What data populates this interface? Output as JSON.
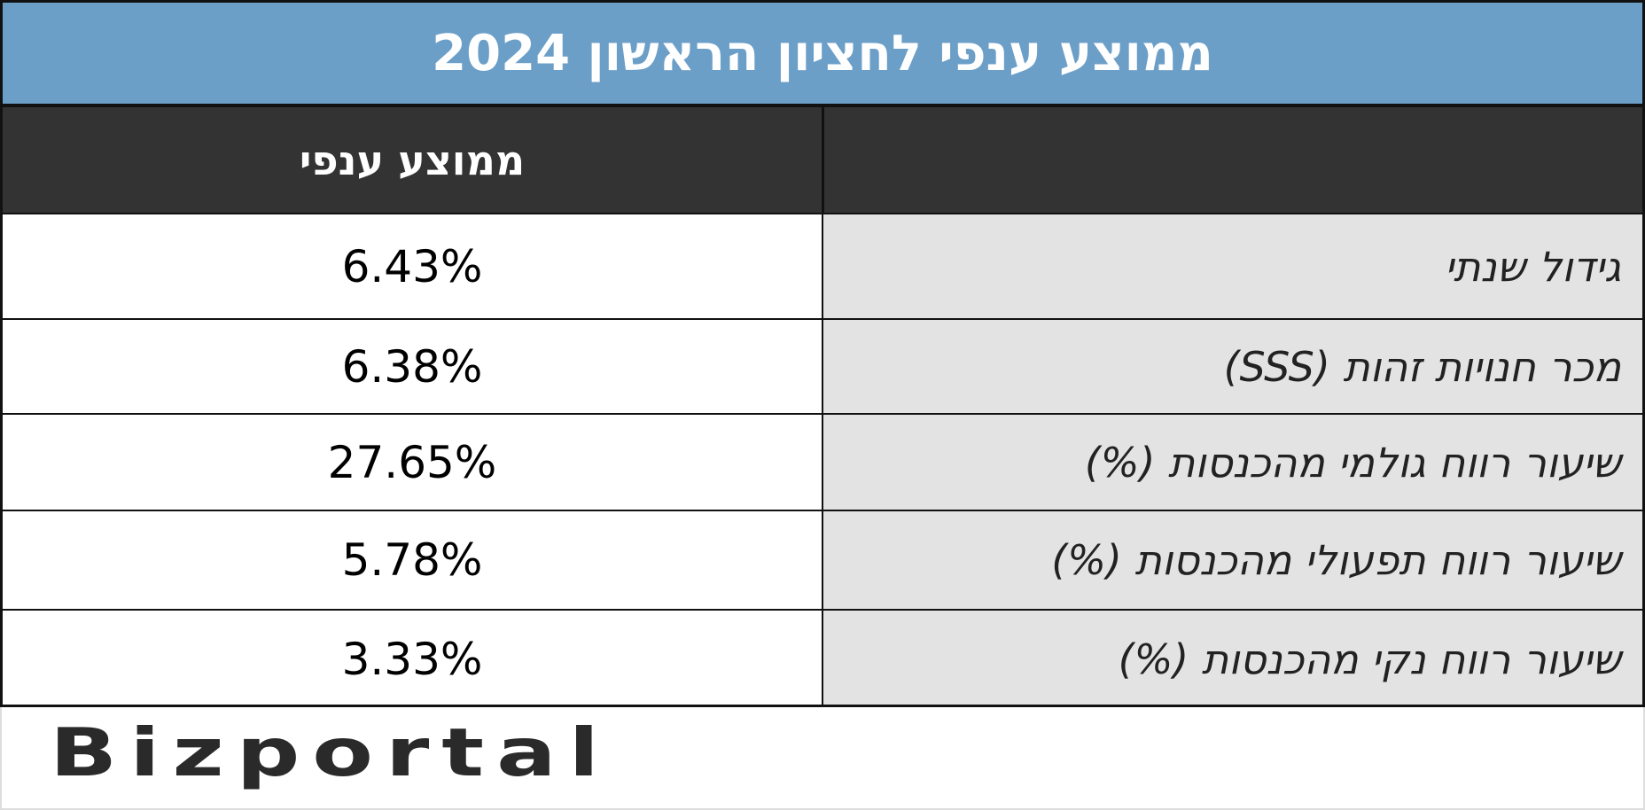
{
  "header": {
    "title": "ממוצע ענפי לחציון הראשון 2024"
  },
  "table": {
    "columns": [
      "ממוצע ענפי"
    ],
    "rows": [
      [
        "גידול שנתי",
        "6.43%"
      ],
      [
        "מכר חנויות זהות (SSS)",
        "6.38%"
      ],
      [
        "שיעור רווח גולמי מהכנסות (%)",
        "27.65%"
      ],
      [
        "שיעור רווח תפעולי מהכנסות (%)",
        "5.78%"
      ],
      [
        "שיעור רווח נקי מהכנסות (%)",
        "3.33%"
      ]
    ]
  },
  "footer": {
    "logo": "Bizportal"
  }
}
